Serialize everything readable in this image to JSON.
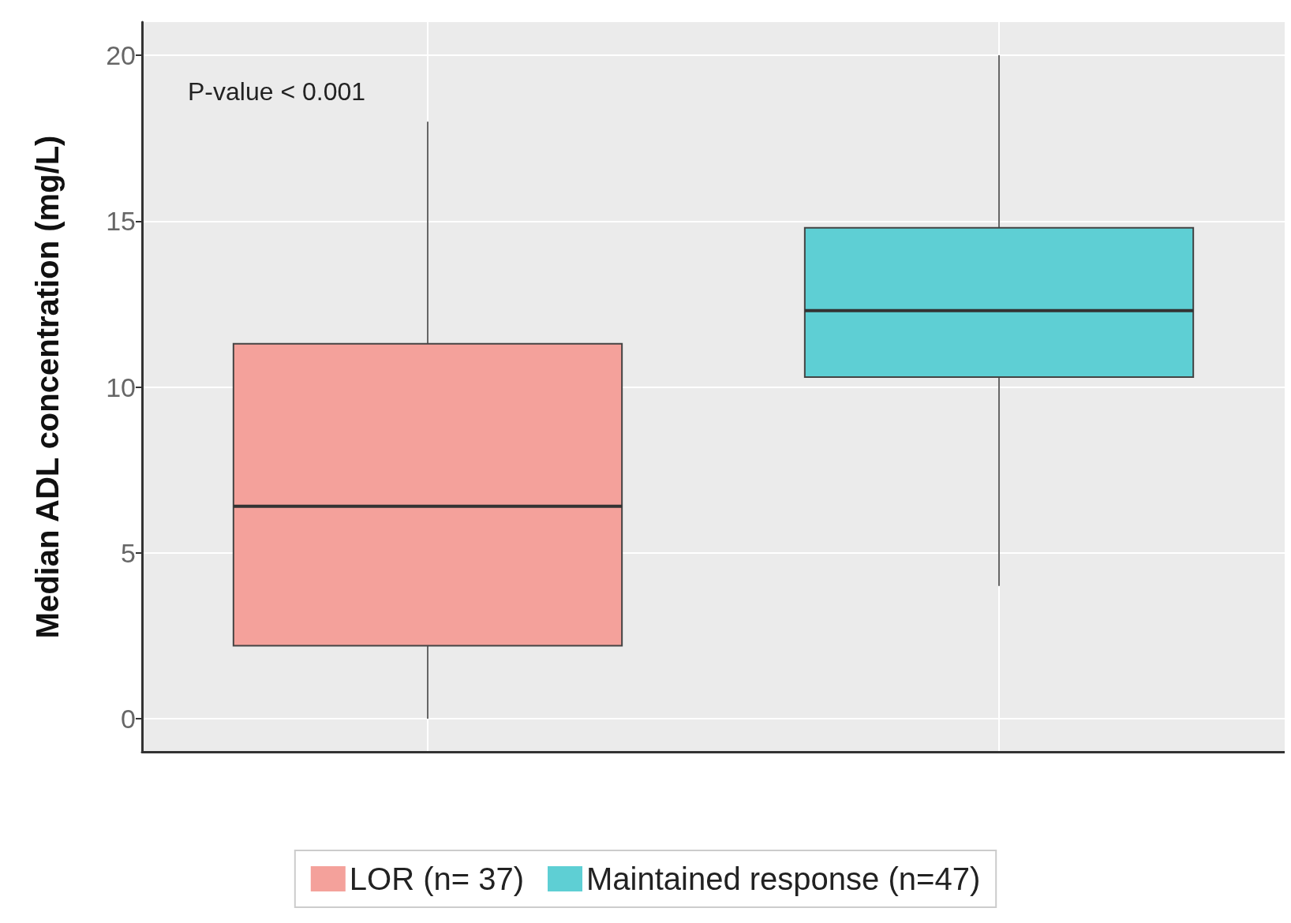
{
  "chart_data": {
    "type": "box",
    "ylabel": "Median ADL concentration (mg/L)",
    "categories": [
      null,
      null
    ],
    "series": [
      {
        "name": "LOR (n= 37)",
        "color": "#f4a19b",
        "boxes": [
          {
            "low": 0,
            "q1": 2.2,
            "median": 6.4,
            "q3": 11.3,
            "high": 18.0
          },
          null
        ]
      },
      {
        "name": "Maintained response (n=47)",
        "color": "#5ecfd4",
        "boxes": [
          null,
          {
            "low": 4.0,
            "q1": 10.3,
            "median": 12.3,
            "q3": 14.8,
            "high": 20.0
          }
        ]
      }
    ],
    "ylim": [
      -1,
      21
    ],
    "yticks": [
      0,
      5,
      10,
      15,
      20
    ],
    "grid": true,
    "legend": "bottom",
    "tick_labels": "y",
    "annotations": [
      "P-value < 0.001"
    ]
  }
}
